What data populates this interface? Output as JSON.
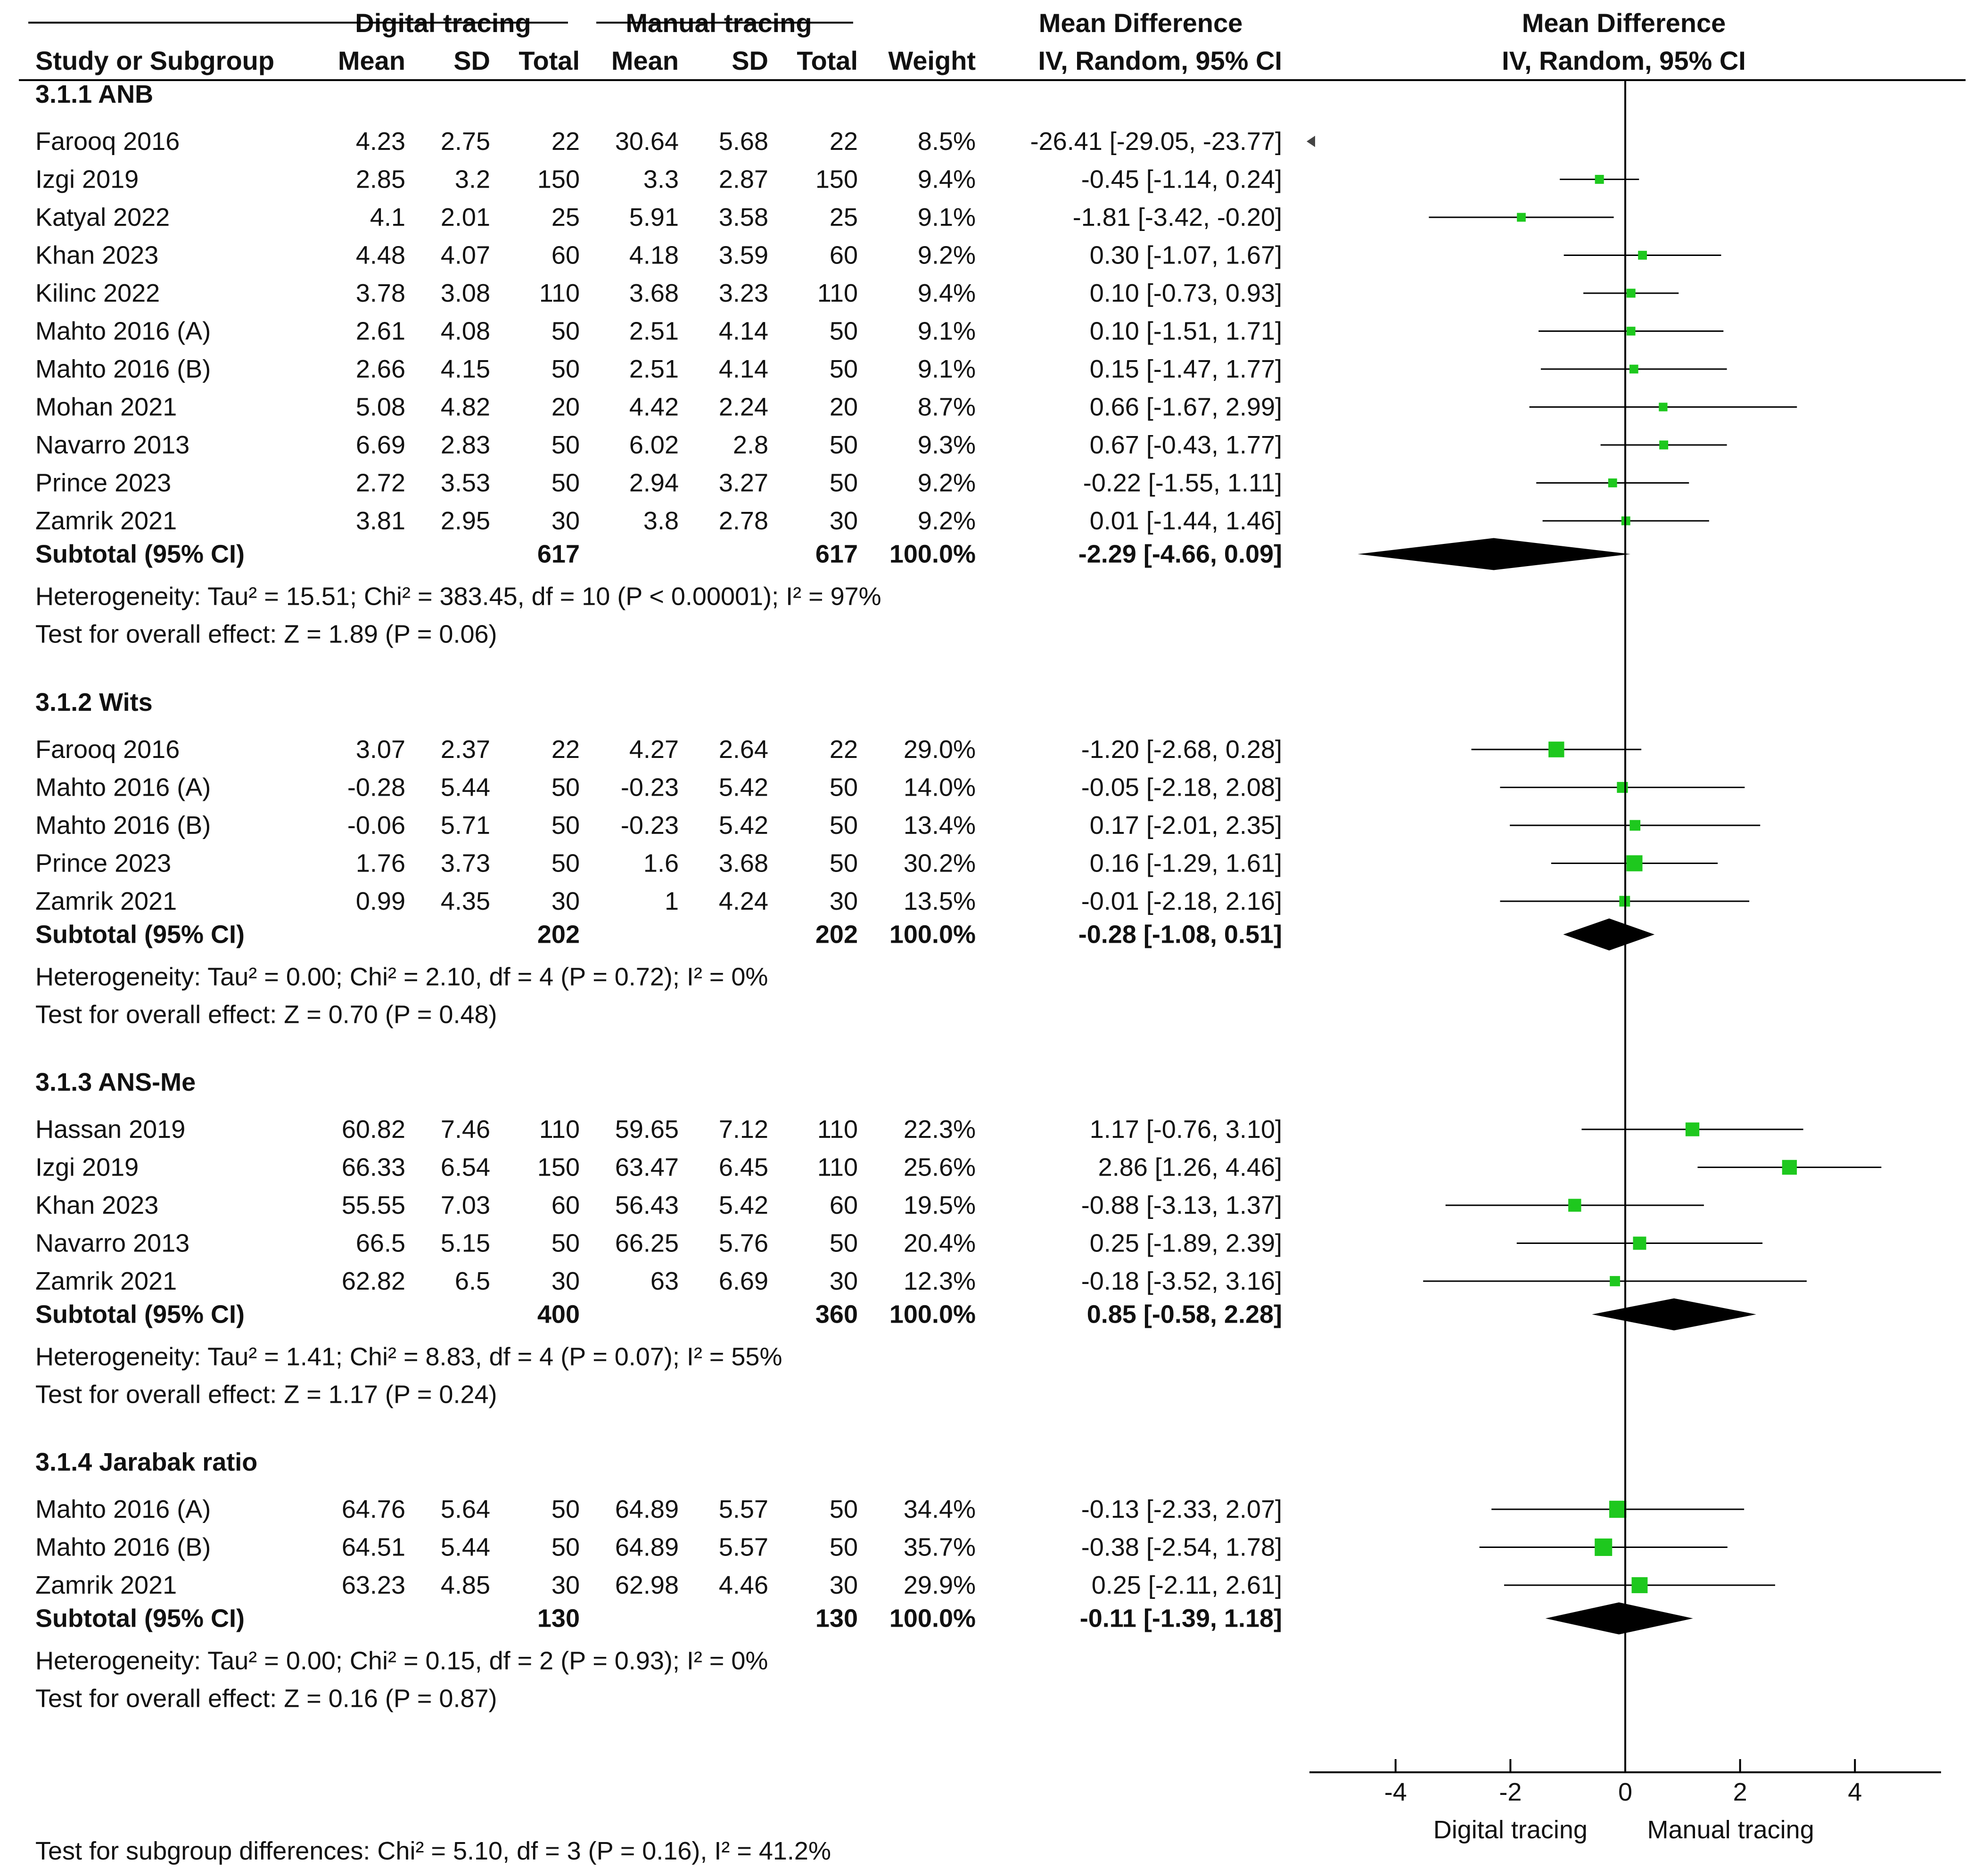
{
  "colors": {
    "marker": "#1ec81e",
    "diamond": "#000000",
    "text": "#111111",
    "line": "#000000"
  },
  "header": {
    "group1": "Digital tracing",
    "group2": "Manual tracing",
    "md_label": "Mean Difference",
    "md_method": "IV, Random, 95% CI",
    "plot_label": "Mean Difference",
    "plot_method": "IV, Random, 95% CI",
    "study_col": "Study or Subgroup",
    "mean": "Mean",
    "sd": "SD",
    "total": "Total",
    "weight": "Weight"
  },
  "chart_data": {
    "type": "forest",
    "title": "",
    "xlabel_left": "Digital tracing",
    "xlabel_right": "Manual tracing",
    "xlim": [
      -5.5,
      5.5
    ],
    "xticks": [
      -4,
      -2,
      0,
      2,
      4
    ],
    "subgroups": [
      {
        "title": "3.1.1 ANB",
        "studies": [
          {
            "name": "Farooq 2016",
            "m1": "4.23",
            "sd1": "2.75",
            "n1": "22",
            "m2": "30.64",
            "sd2": "5.68",
            "n2": "22",
            "weight": "8.5%",
            "ci_text": "-26.41 [-29.05, -23.77]",
            "md": -26.41,
            "lo": -29.05,
            "hi": -23.77
          },
          {
            "name": "Izgi 2019",
            "m1": "2.85",
            "sd1": "3.2",
            "n1": "150",
            "m2": "3.3",
            "sd2": "2.87",
            "n2": "150",
            "weight": "9.4%",
            "ci_text": "-0.45 [-1.14, 0.24]",
            "md": -0.45,
            "lo": -1.14,
            "hi": 0.24
          },
          {
            "name": "Katyal 2022",
            "m1": "4.1",
            "sd1": "2.01",
            "n1": "25",
            "m2": "5.91",
            "sd2": "3.58",
            "n2": "25",
            "weight": "9.1%",
            "ci_text": "-1.81 [-3.42, -0.20]",
            "md": -1.81,
            "lo": -3.42,
            "hi": -0.2
          },
          {
            "name": "Khan 2023",
            "m1": "4.48",
            "sd1": "4.07",
            "n1": "60",
            "m2": "4.18",
            "sd2": "3.59",
            "n2": "60",
            "weight": "9.2%",
            "ci_text": "0.30 [-1.07, 1.67]",
            "md": 0.3,
            "lo": -1.07,
            "hi": 1.67
          },
          {
            "name": "Kilinc 2022",
            "m1": "3.78",
            "sd1": "3.08",
            "n1": "110",
            "m2": "3.68",
            "sd2": "3.23",
            "n2": "110",
            "weight": "9.4%",
            "ci_text": "0.10 [-0.73, 0.93]",
            "md": 0.1,
            "lo": -0.73,
            "hi": 0.93
          },
          {
            "name": "Mahto 2016 (A)",
            "m1": "2.61",
            "sd1": "4.08",
            "n1": "50",
            "m2": "2.51",
            "sd2": "4.14",
            "n2": "50",
            "weight": "9.1%",
            "ci_text": "0.10 [-1.51, 1.71]",
            "md": 0.1,
            "lo": -1.51,
            "hi": 1.71
          },
          {
            "name": "Mahto 2016 (B)",
            "m1": "2.66",
            "sd1": "4.15",
            "n1": "50",
            "m2": "2.51",
            "sd2": "4.14",
            "n2": "50",
            "weight": "9.1%",
            "ci_text": "0.15 [-1.47, 1.77]",
            "md": 0.15,
            "lo": -1.47,
            "hi": 1.77
          },
          {
            "name": "Mohan 2021",
            "m1": "5.08",
            "sd1": "4.82",
            "n1": "20",
            "m2": "4.42",
            "sd2": "2.24",
            "n2": "20",
            "weight": "8.7%",
            "ci_text": "0.66 [-1.67, 2.99]",
            "md": 0.66,
            "lo": -1.67,
            "hi": 2.99
          },
          {
            "name": "Navarro 2013",
            "m1": "6.69",
            "sd1": "2.83",
            "n1": "50",
            "m2": "6.02",
            "sd2": "2.8",
            "n2": "50",
            "weight": "9.3%",
            "ci_text": "0.67 [-0.43, 1.77]",
            "md": 0.67,
            "lo": -0.43,
            "hi": 1.77
          },
          {
            "name": "Prince 2023",
            "m1": "2.72",
            "sd1": "3.53",
            "n1": "50",
            "m2": "2.94",
            "sd2": "3.27",
            "n2": "50",
            "weight": "9.2%",
            "ci_text": "-0.22 [-1.55, 1.11]",
            "md": -0.22,
            "lo": -1.55,
            "hi": 1.11
          },
          {
            "name": "Zamrik 2021",
            "m1": "3.81",
            "sd1": "2.95",
            "n1": "30",
            "m2": "3.8",
            "sd2": "2.78",
            "n2": "30",
            "weight": "9.2%",
            "ci_text": "0.01 [-1.44, 1.46]",
            "md": 0.01,
            "lo": -1.44,
            "hi": 1.46
          }
        ],
        "subtotal": {
          "label": "Subtotal (95% CI)",
          "n1": "617",
          "n2": "617",
          "weight": "100.0%",
          "ci_text": "-2.29 [-4.66, 0.09]",
          "md": -2.29,
          "lo": -4.66,
          "hi": 0.09
        },
        "heterogeneity": "Heterogeneity: Tau² = 15.51; Chi² = 383.45, df = 10 (P < 0.00001); I² = 97%",
        "overall": "Test for overall effect: Z = 1.89 (P = 0.06)"
      },
      {
        "title": "3.1.2 Wits",
        "studies": [
          {
            "name": "Farooq 2016",
            "m1": "3.07",
            "sd1": "2.37",
            "n1": "22",
            "m2": "4.27",
            "sd2": "2.64",
            "n2": "22",
            "weight": "29.0%",
            "ci_text": "-1.20 [-2.68, 0.28]",
            "md": -1.2,
            "lo": -2.68,
            "hi": 0.28
          },
          {
            "name": "Mahto 2016 (A)",
            "m1": "-0.28",
            "sd1": "5.44",
            "n1": "50",
            "m2": "-0.23",
            "sd2": "5.42",
            "n2": "50",
            "weight": "14.0%",
            "ci_text": "-0.05 [-2.18, 2.08]",
            "md": -0.05,
            "lo": -2.18,
            "hi": 2.08
          },
          {
            "name": "Mahto 2016 (B)",
            "m1": "-0.06",
            "sd1": "5.71",
            "n1": "50",
            "m2": "-0.23",
            "sd2": "5.42",
            "n2": "50",
            "weight": "13.4%",
            "ci_text": "0.17 [-2.01, 2.35]",
            "md": 0.17,
            "lo": -2.01,
            "hi": 2.35
          },
          {
            "name": "Prince 2023",
            "m1": "1.76",
            "sd1": "3.73",
            "n1": "50",
            "m2": "1.6",
            "sd2": "3.68",
            "n2": "50",
            "weight": "30.2%",
            "ci_text": "0.16 [-1.29, 1.61]",
            "md": 0.16,
            "lo": -1.29,
            "hi": 1.61
          },
          {
            "name": "Zamrik 2021",
            "m1": "0.99",
            "sd1": "4.35",
            "n1": "30",
            "m2": "1",
            "sd2": "4.24",
            "n2": "30",
            "weight": "13.5%",
            "ci_text": "-0.01 [-2.18, 2.16]",
            "md": -0.01,
            "lo": -2.18,
            "hi": 2.16
          }
        ],
        "subtotal": {
          "label": "Subtotal (95% CI)",
          "n1": "202",
          "n2": "202",
          "weight": "100.0%",
          "ci_text": "-0.28 [-1.08, 0.51]",
          "md": -0.28,
          "lo": -1.08,
          "hi": 0.51
        },
        "heterogeneity": "Heterogeneity: Tau² = 0.00; Chi² = 2.10, df = 4 (P = 0.72); I² = 0%",
        "overall": "Test for overall effect: Z = 0.70 (P = 0.48)"
      },
      {
        "title": "3.1.3 ANS-Me",
        "studies": [
          {
            "name": "Hassan 2019",
            "m1": "60.82",
            "sd1": "7.46",
            "n1": "110",
            "m2": "59.65",
            "sd2": "7.12",
            "n2": "110",
            "weight": "22.3%",
            "ci_text": "1.17 [-0.76, 3.10]",
            "md": 1.17,
            "lo": -0.76,
            "hi": 3.1
          },
          {
            "name": "Izgi 2019",
            "m1": "66.33",
            "sd1": "6.54",
            "n1": "150",
            "m2": "63.47",
            "sd2": "6.45",
            "n2": "110",
            "weight": "25.6%",
            "ci_text": "2.86 [1.26, 4.46]",
            "md": 2.86,
            "lo": 1.26,
            "hi": 4.46
          },
          {
            "name": "Khan 2023",
            "m1": "55.55",
            "sd1": "7.03",
            "n1": "60",
            "m2": "56.43",
            "sd2": "5.42",
            "n2": "60",
            "weight": "19.5%",
            "ci_text": "-0.88 [-3.13, 1.37]",
            "md": -0.88,
            "lo": -3.13,
            "hi": 1.37
          },
          {
            "name": "Navarro 2013",
            "m1": "66.5",
            "sd1": "5.15",
            "n1": "50",
            "m2": "66.25",
            "sd2": "5.76",
            "n2": "50",
            "weight": "20.4%",
            "ci_text": "0.25 [-1.89, 2.39]",
            "md": 0.25,
            "lo": -1.89,
            "hi": 2.39
          },
          {
            "name": "Zamrik 2021",
            "m1": "62.82",
            "sd1": "6.5",
            "n1": "30",
            "m2": "63",
            "sd2": "6.69",
            "n2": "30",
            "weight": "12.3%",
            "ci_text": "-0.18 [-3.52, 3.16]",
            "md": -0.18,
            "lo": -3.52,
            "hi": 3.16
          }
        ],
        "subtotal": {
          "label": "Subtotal (95% CI)",
          "n1": "400",
          "n2": "360",
          "weight": "100.0%",
          "ci_text": "0.85 [-0.58, 2.28]",
          "md": 0.85,
          "lo": -0.58,
          "hi": 2.28
        },
        "heterogeneity": "Heterogeneity: Tau² = 1.41; Chi² = 8.83, df = 4 (P = 0.07); I² = 55%",
        "overall": "Test for overall effect: Z = 1.17 (P = 0.24)"
      },
      {
        "title": "3.1.4 Jarabak ratio",
        "studies": [
          {
            "name": "Mahto 2016 (A)",
            "m1": "64.76",
            "sd1": "5.64",
            "n1": "50",
            "m2": "64.89",
            "sd2": "5.57",
            "n2": "50",
            "weight": "34.4%",
            "ci_text": "-0.13 [-2.33, 2.07]",
            "md": -0.13,
            "lo": -2.33,
            "hi": 2.07
          },
          {
            "name": "Mahto 2016 (B)",
            "m1": "64.51",
            "sd1": "5.44",
            "n1": "50",
            "m2": "64.89",
            "sd2": "5.57",
            "n2": "50",
            "weight": "35.7%",
            "ci_text": "-0.38 [-2.54, 1.78]",
            "md": -0.38,
            "lo": -2.54,
            "hi": 1.78
          },
          {
            "name": "Zamrik 2021",
            "m1": "63.23",
            "sd1": "4.85",
            "n1": "30",
            "m2": "62.98",
            "sd2": "4.46",
            "n2": "30",
            "weight": "29.9%",
            "ci_text": "0.25 [-2.11, 2.61]",
            "md": 0.25,
            "lo": -2.11,
            "hi": 2.61
          }
        ],
        "subtotal": {
          "label": "Subtotal (95% CI)",
          "n1": "130",
          "n2": "130",
          "weight": "100.0%",
          "ci_text": "-0.11 [-1.39, 1.18]",
          "md": -0.11,
          "lo": -1.39,
          "hi": 1.18
        },
        "heterogeneity": "Heterogeneity: Tau² = 0.00; Chi² = 0.15, df = 2 (P = 0.93); I² = 0%",
        "overall": "Test for overall effect: Z = 0.16 (P = 0.87)"
      }
    ],
    "subgroup_differences": "Test for subgroup differences: Chi² = 5.10, df = 3 (P = 0.16), I² = 41.2%"
  }
}
